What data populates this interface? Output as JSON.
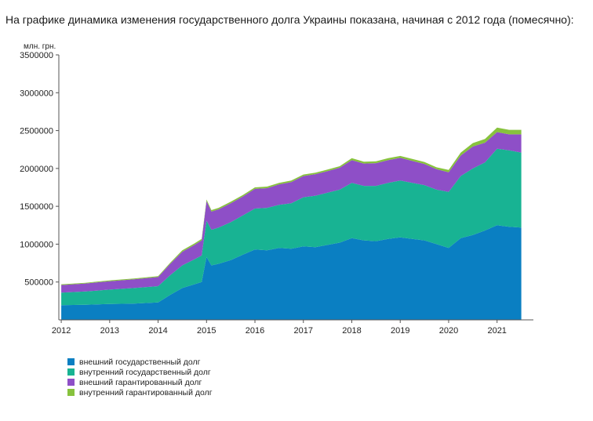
{
  "heading": "На графике динамика изменения государственного долга Украины показана, начиная с 2012 года (помесячно):",
  "chart_data": {
    "type": "area",
    "stacked": true,
    "ylabel": "млн. грн.",
    "ylim": [
      0,
      3500000
    ],
    "yticks": [
      500000,
      1000000,
      1500000,
      2000000,
      2500000,
      3000000,
      3500000
    ],
    "ytick_labels": [
      "500000",
      "1000000",
      "1500000",
      "2000000",
      "2500000",
      "3000000",
      "3500000"
    ],
    "xlim": [
      2011.95,
      2021.75
    ],
    "xticks": [
      2012,
      2013,
      2014,
      2015,
      2016,
      2017,
      2018,
      2019,
      2020,
      2021
    ],
    "xtick_labels": [
      "2012",
      "2013",
      "2014",
      "2015",
      "2016",
      "2017",
      "2018",
      "2019",
      "2020",
      "2021"
    ],
    "legend_position": "bottom-left",
    "x": [
      2012.0,
      2012.5,
      2013.0,
      2013.5,
      2014.0,
      2014.25,
      2014.5,
      2014.75,
      2014.9,
      2015.0,
      2015.1,
      2015.25,
      2015.5,
      2015.75,
      2016.0,
      2016.25,
      2016.5,
      2016.75,
      2017.0,
      2017.25,
      2017.5,
      2017.75,
      2018.0,
      2018.25,
      2018.5,
      2018.75,
      2019.0,
      2019.25,
      2019.5,
      2019.75,
      2020.0,
      2020.25,
      2020.5,
      2020.75,
      2021.0,
      2021.25,
      2021.5
    ],
    "series": [
      {
        "name": "внешний государственный долг",
        "color": "#0a7fc2",
        "values": [
          195000,
          200000,
          210000,
          215000,
          230000,
          330000,
          420000,
          470000,
          500000,
          830000,
          720000,
          740000,
          790000,
          860000,
          930000,
          920000,
          950000,
          940000,
          970000,
          960000,
          990000,
          1020000,
          1080000,
          1050000,
          1040000,
          1070000,
          1090000,
          1070000,
          1050000,
          1000000,
          950000,
          1080000,
          1120000,
          1180000,
          1250000,
          1230000,
          1220000
        ]
      },
      {
        "name": "внутренний государственный долг",
        "color": "#18b393",
        "values": [
          165000,
          175000,
          190000,
          205000,
          215000,
          260000,
          300000,
          330000,
          350000,
          480000,
          470000,
          480000,
          500000,
          520000,
          540000,
          560000,
          570000,
          600000,
          650000,
          680000,
          690000,
          700000,
          730000,
          720000,
          730000,
          740000,
          750000,
          740000,
          730000,
          720000,
          740000,
          820000,
          880000,
          900000,
          1010000,
          1010000,
          990000
        ]
      },
      {
        "name": "внешний гарантированный долг",
        "color": "#8e4fc7",
        "values": [
          100000,
          105000,
          110000,
          115000,
          120000,
          150000,
          180000,
          190000,
          200000,
          260000,
          240000,
          240000,
          250000,
          250000,
          260000,
          260000,
          270000,
          280000,
          280000,
          285000,
          285000,
          290000,
          300000,
          295000,
          300000,
          300000,
          300000,
          290000,
          280000,
          270000,
          260000,
          270000,
          290000,
          260000,
          220000,
          210000,
          240000
        ]
      },
      {
        "name": "внутренний гарантированный долг",
        "color": "#87c23d",
        "values": [
          10000,
          10000,
          12000,
          12000,
          12000,
          15000,
          18000,
          20000,
          20000,
          20000,
          20000,
          20000,
          20000,
          20000,
          20000,
          20000,
          20000,
          20000,
          20000,
          20000,
          20000,
          20000,
          25000,
          25000,
          25000,
          25000,
          25000,
          25000,
          25000,
          25000,
          30000,
          40000,
          45000,
          50000,
          60000,
          60000,
          60000
        ]
      }
    ]
  }
}
